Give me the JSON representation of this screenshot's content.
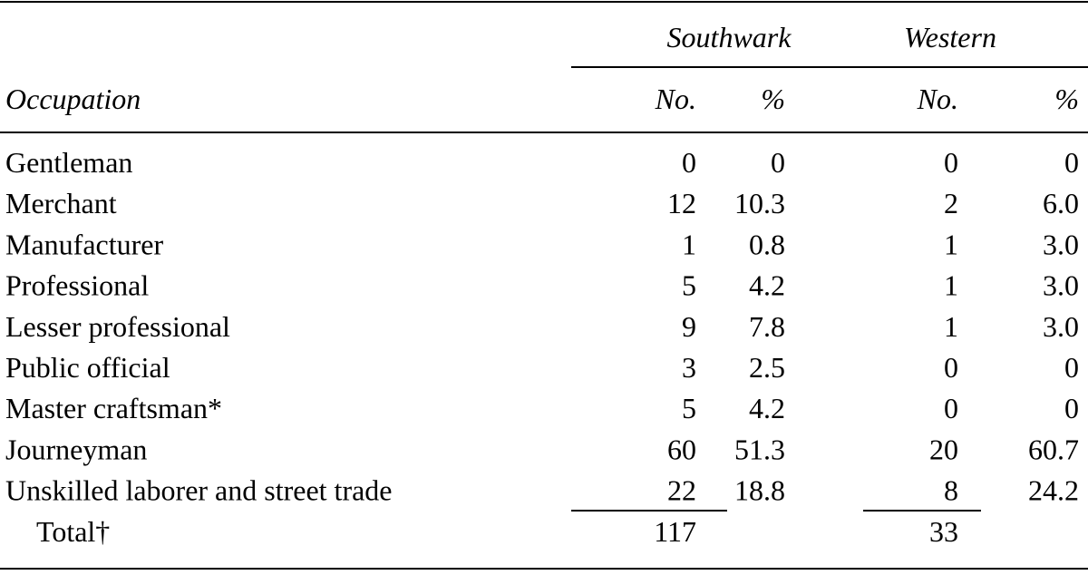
{
  "table": {
    "group_headers": [
      "Southwark",
      "Western"
    ],
    "column_headers": [
      "Occupation",
      "No.",
      "%",
      "No.",
      "%"
    ],
    "rows": [
      [
        "Gentleman",
        "0",
        "0",
        "0",
        "0"
      ],
      [
        "Merchant",
        "12",
        "10.3",
        "2",
        "6.0"
      ],
      [
        "Manufacturer",
        "1",
        "0.8",
        "1",
        "3.0"
      ],
      [
        "Professional",
        "5",
        "4.2",
        "1",
        "3.0"
      ],
      [
        "Lesser professional",
        "9",
        "7.8",
        "1",
        "3.0"
      ],
      [
        "Public official",
        "3",
        "2.5",
        "0",
        "0"
      ],
      [
        "Master craftsman*",
        "5",
        "4.2",
        "0",
        "0"
      ],
      [
        "Journeyman",
        "60",
        "51.3",
        "20",
        "60.7"
      ],
      [
        "Unskilled laborer and street trade",
        "22",
        "18.8",
        "8",
        "24.2"
      ]
    ],
    "total": {
      "label": "Total†",
      "southwark_no": "117",
      "western_no": "33"
    }
  }
}
